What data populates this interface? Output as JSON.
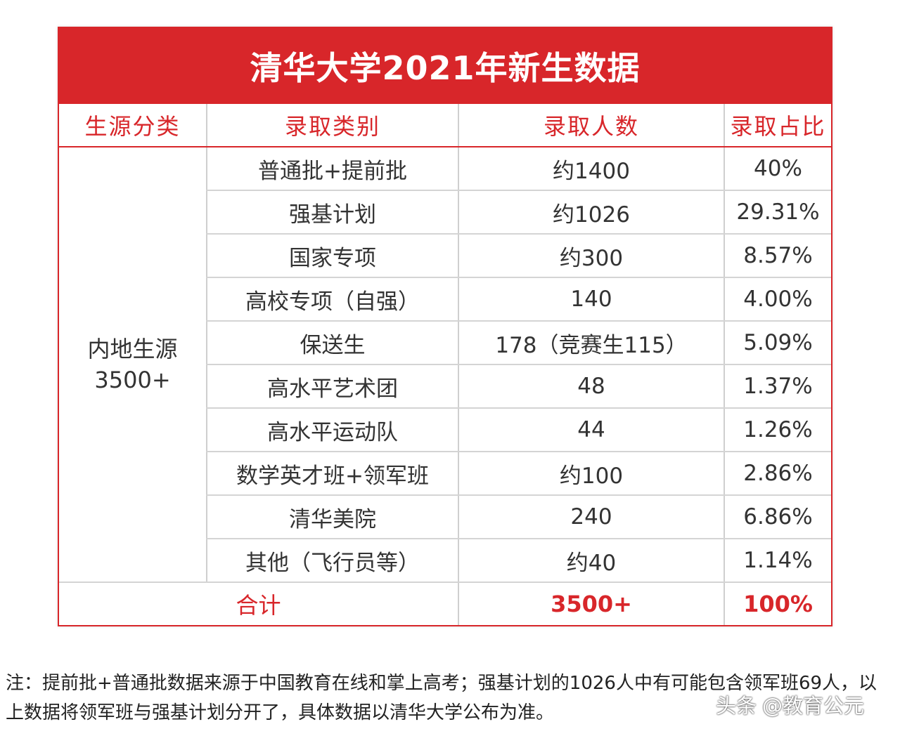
{
  "title": "清华大学2021年新生数据",
  "headers": {
    "source": "生源分类",
    "category": "录取类别",
    "count": "录取人数",
    "ratio": "录取占比"
  },
  "group": {
    "line1": "内地生源",
    "line2": "3500+"
  },
  "rows": [
    {
      "category": "普通批+提前批",
      "count": "约1400",
      "ratio": "40%"
    },
    {
      "category": "强基计划",
      "count": "约1026",
      "ratio": "29.31%"
    },
    {
      "category": "国家专项",
      "count": "约300",
      "ratio": "8.57%"
    },
    {
      "category": "高校专项（自强）",
      "count": "140",
      "ratio": "4.00%"
    },
    {
      "category": "保送生",
      "count": "178（竞赛生115）",
      "ratio": "5.09%"
    },
    {
      "category": "高水平艺术团",
      "count": "48",
      "ratio": "1.37%"
    },
    {
      "category": "高水平运动队",
      "count": "44",
      "ratio": "1.26%"
    },
    {
      "category": "数学英才班+领军班",
      "count": "约100",
      "ratio": "2.86%"
    },
    {
      "category": "清华美院",
      "count": "240",
      "ratio": "6.86%"
    },
    {
      "category": "其他（飞行员等）",
      "count": "约40",
      "ratio": "1.14%"
    }
  ],
  "total": {
    "label": "合计",
    "count": "3500+",
    "ratio": "100%"
  },
  "note": "注：提前批+普通批数据来源于中国教育在线和掌上高考；强基计划的1026人中有可能包含领军班69人，以上数据将领军班与强基计划分开了，具体数据以清华大学公布为准。",
  "watermark": {
    "brand": "头条",
    "handle": "@教育公元"
  },
  "colors": {
    "accent": "#d8262a"
  }
}
